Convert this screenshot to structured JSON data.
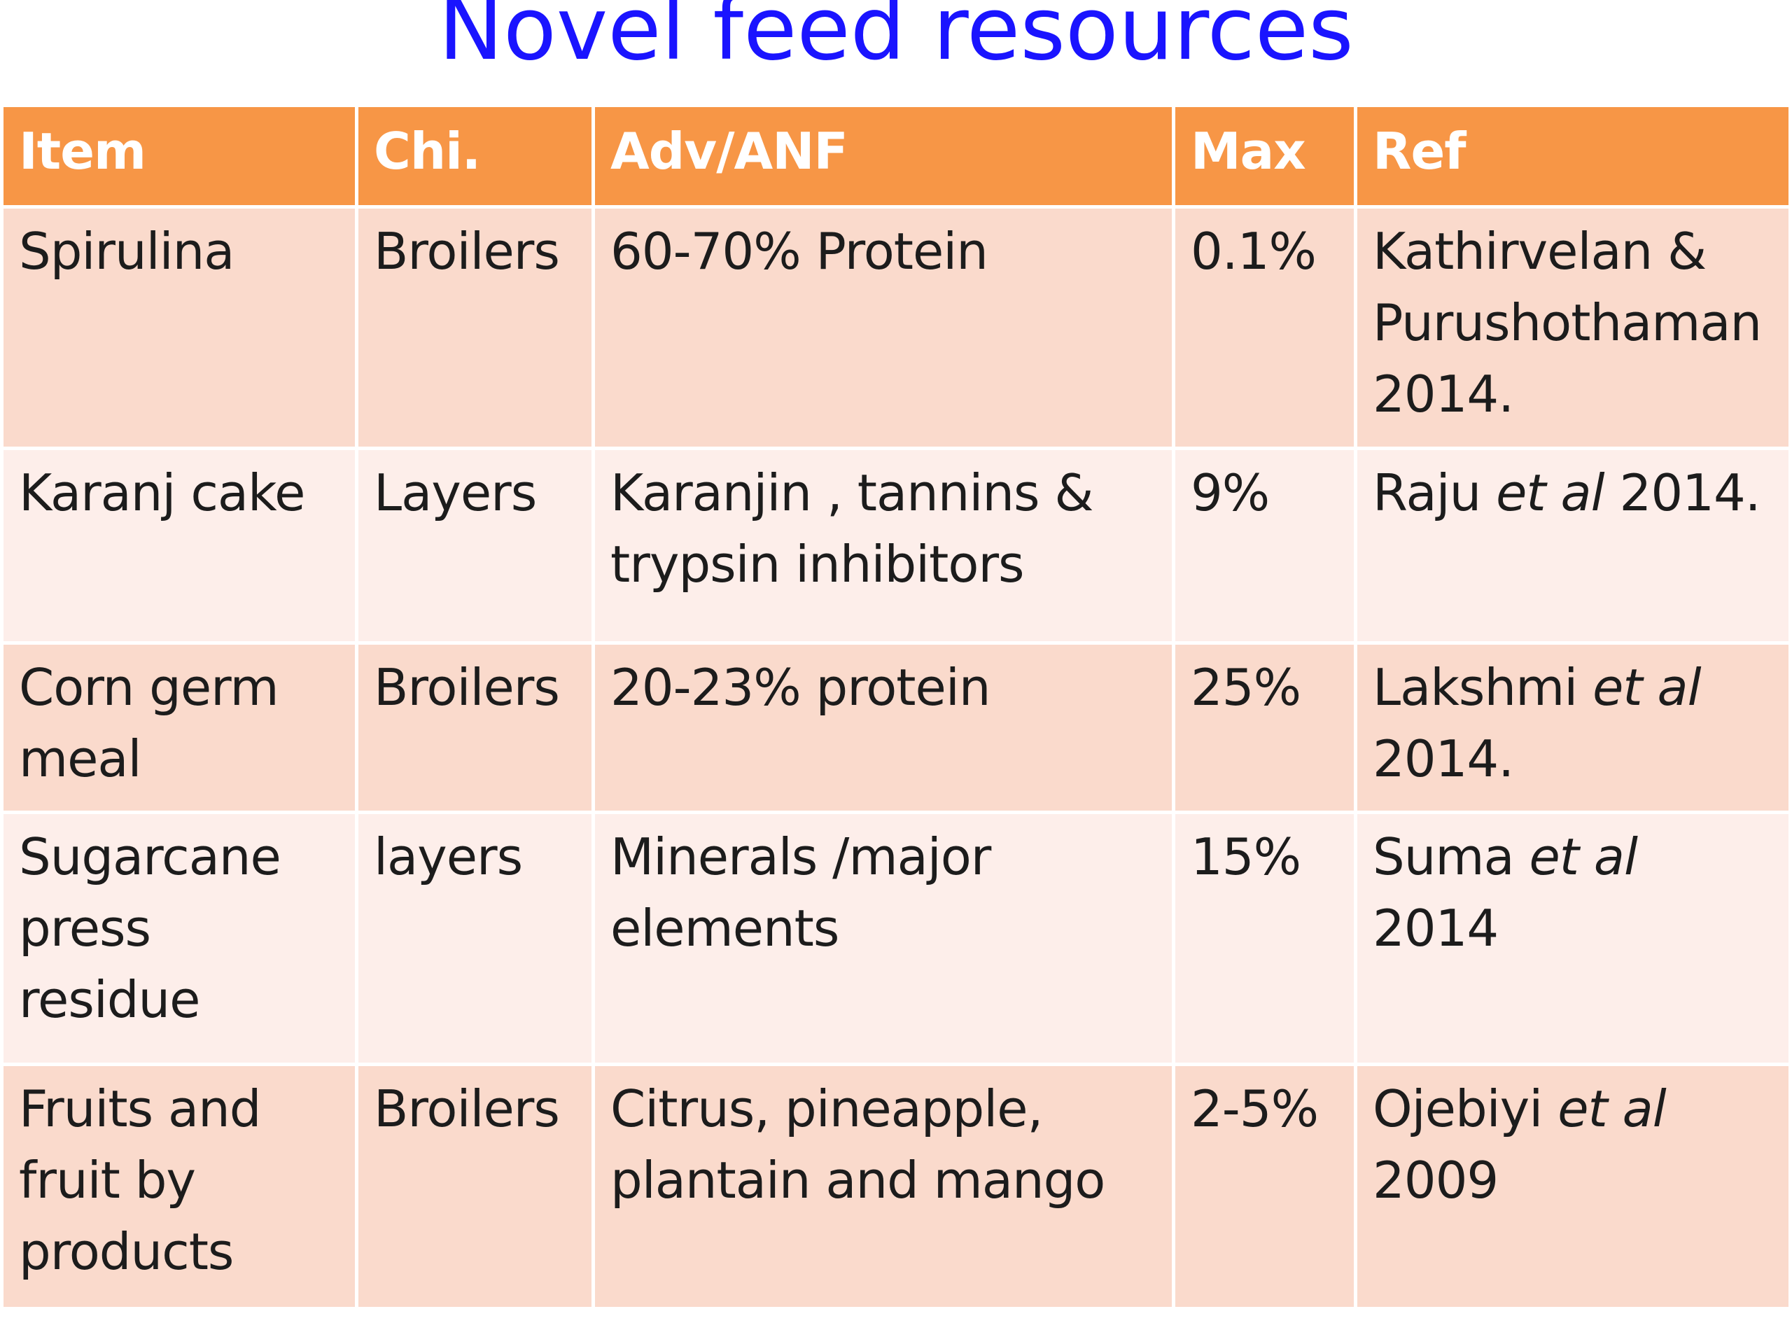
{
  "title": "Novel feed resources",
  "table": {
    "headers": [
      "Item",
      "Chi.",
      "Adv/ANF",
      "Max",
      "Ref"
    ],
    "rows": [
      {
        "item": "Spirulina",
        "chi": "Broilers",
        "adv": "60-70% Protein",
        "max": "0.1%",
        "ref_pre": "Kathirvelan & Purushothaman 2014.",
        "ref_italic": "",
        "ref_post": ""
      },
      {
        "item": "Karanj cake",
        "chi": "Layers",
        "adv": "Karanjin , tannins & trypsin inhibitors",
        "max": "9%",
        "ref_pre": "Raju ",
        "ref_italic": "et al",
        "ref_post": " 2014."
      },
      {
        "item": "Corn germ meal",
        "chi": "Broilers",
        "adv": "20-23% protein",
        "max": "25%",
        "ref_pre": "Lakshmi  ",
        "ref_italic": "et al",
        "ref_post": " 2014."
      },
      {
        "item": "Sugarcane press residue",
        "chi": "layers",
        "adv": "Minerals /major elements",
        "max": "15%",
        "ref_pre": "Suma ",
        "ref_italic": "et al",
        "ref_post": " 2014"
      },
      {
        "item": "Fruits and fruit by products",
        "chi": "Broilers",
        "adv": "Citrus, pineapple, plantain and mango",
        "max": "2-5%",
        "ref_pre": "Ojebiyi ",
        "ref_italic": "et al",
        "ref_post": " 2009"
      }
    ]
  },
  "colors": {
    "title": "#1a14ff",
    "header_bg": "#f79646",
    "row_odd_bg": "#fadacc",
    "row_even_bg": "#fdeeea"
  }
}
